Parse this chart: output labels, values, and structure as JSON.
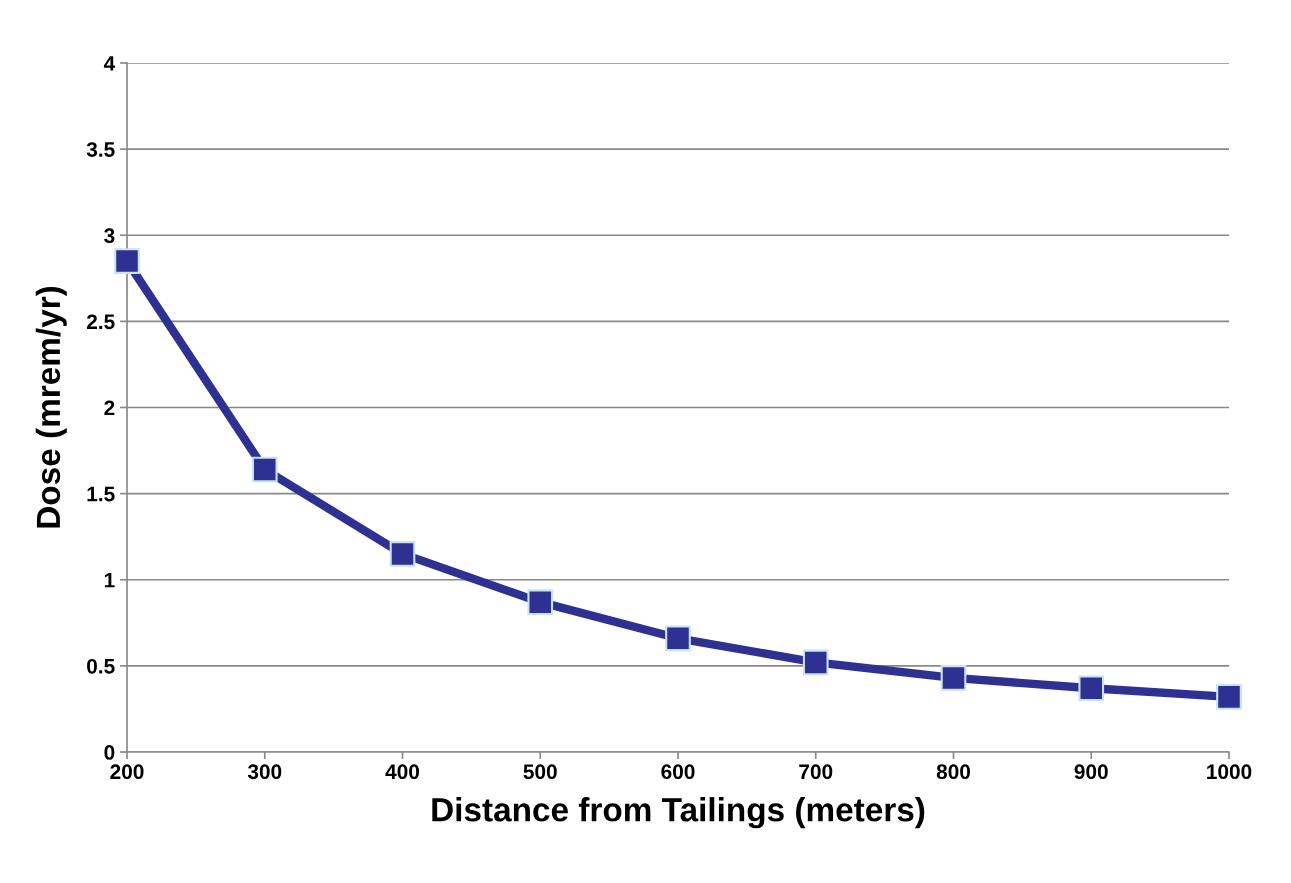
{
  "chart_data": {
    "type": "line",
    "xlabel": "Distance from Tailings (meters)",
    "ylabel": "Dose (mrem/yr)",
    "x": [
      200,
      300,
      400,
      500,
      600,
      700,
      800,
      900,
      1000
    ],
    "series": [
      {
        "color": "#2e3192",
        "values": [
          2.85,
          1.64,
          1.15,
          0.87,
          0.66,
          0.52,
          0.43,
          0.37,
          0.32
        ]
      }
    ],
    "xlim": [
      200,
      1000
    ],
    "xticks": [
      200,
      300,
      400,
      500,
      600,
      700,
      800,
      900,
      1000
    ],
    "ylim": [
      0,
      4
    ],
    "yticks": [
      0,
      0.5,
      1,
      1.5,
      2,
      2.5,
      3,
      3.5,
      4
    ],
    "grid": "y",
    "legend": false,
    "marker": "square",
    "line_style": "solid"
  }
}
